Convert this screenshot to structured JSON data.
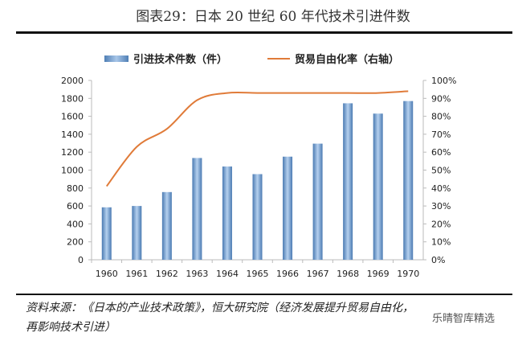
{
  "title": "图表29：日本 20 世纪 60 年代技术引进件数",
  "source_line1": "资料来源：《日本的产业技术政策》，恒大研究院（经济发展提升贸易自由化，",
  "source_line2": "再影响技术引进）",
  "watermark": "乐晴智库精选",
  "chart_data": {
    "type": "bar+line",
    "categories": [
      "1960",
      "1961",
      "1962",
      "1963",
      "1964",
      "1965",
      "1966",
      "1967",
      "1968",
      "1969",
      "1970"
    ],
    "series": [
      {
        "name": "引进技术件数（件）",
        "type": "bar",
        "axis": "left",
        "color": "#7ba3d3",
        "values": [
          585,
          600,
          755,
          1135,
          1040,
          955,
          1150,
          1295,
          1745,
          1630,
          1770
        ]
      },
      {
        "name": "贸易自由化率（右轴）",
        "type": "line",
        "axis": "right",
        "color": "#e07b39",
        "values": [
          41,
          63,
          73,
          89,
          93,
          93,
          93,
          93,
          93,
          93,
          94
        ]
      }
    ],
    "ylim": [
      0,
      2000
    ],
    "yticks": [
      "0",
      "200",
      "400",
      "600",
      "800",
      "1000",
      "1200",
      "1400",
      "1600",
      "1800",
      "2000"
    ],
    "y2lim": [
      0,
      100
    ],
    "y2ticks": [
      "0%",
      "10%",
      "20%",
      "30%",
      "40%",
      "50%",
      "60%",
      "70%",
      "80%",
      "90%",
      "100%"
    ],
    "legend": "top"
  }
}
